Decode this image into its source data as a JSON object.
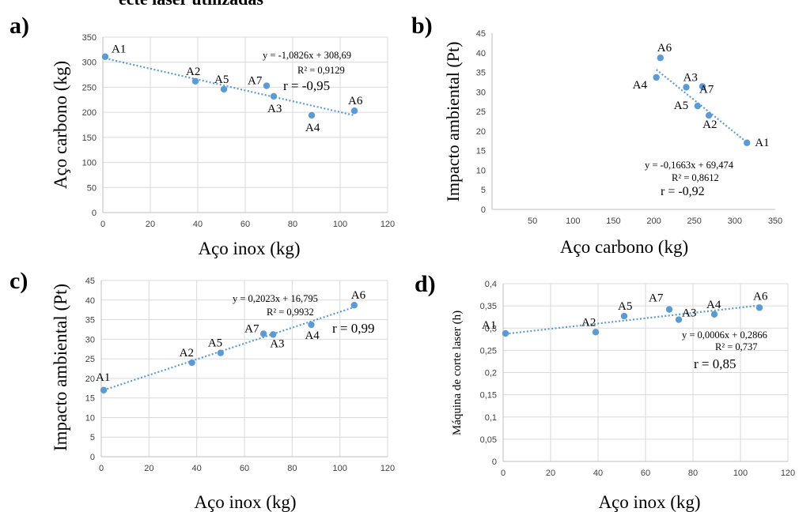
{
  "top_text": "ecte laser utilizadas",
  "colors": {
    "point": "#5b9bd5",
    "grid": "#d9d9d9",
    "axis": "#bfbfbf",
    "trend": "#5b9bd5"
  },
  "chart_data": [
    {
      "type": "scatter",
      "panel": "a)",
      "xlabel": "Aço inox (kg)",
      "ylabel": "Aço carbono (kg)",
      "xlim": [
        0,
        120
      ],
      "ylim": [
        0,
        350
      ],
      "xticks": [
        0,
        20,
        40,
        60,
        80,
        100,
        120
      ],
      "yticks": [
        0,
        50,
        100,
        150,
        200,
        250,
        300,
        350
      ],
      "grid": true,
      "points": [
        {
          "label": "A1",
          "x": 1,
          "y": 311
        },
        {
          "label": "A2",
          "x": 39,
          "y": 262
        },
        {
          "label": "A5",
          "x": 51,
          "y": 246
        },
        {
          "label": "A7",
          "x": 69,
          "y": 253
        },
        {
          "label": "A3",
          "x": 72,
          "y": 232
        },
        {
          "label": "A4",
          "x": 88,
          "y": 194
        },
        {
          "label": "A6",
          "x": 106,
          "y": 203
        }
      ],
      "trend": {
        "x": [
          1,
          106
        ],
        "y": [
          307.6,
          193.9
        ]
      },
      "equation": "y = -1,0826x + 308,69",
      "r2": "R² = 0,9129",
      "r": "r = -0,95"
    },
    {
      "type": "scatter",
      "panel": "b)",
      "xlabel": "Aço carbono (kg)",
      "ylabel": "Impacto ambiental (Pt)",
      "xlim": [
        0,
        350
      ],
      "ylim": [
        0,
        45
      ],
      "xticks": [
        50,
        100,
        150,
        200,
        250,
        300,
        350
      ],
      "yticks": [
        0,
        5,
        10,
        15,
        20,
        25,
        30,
        35,
        40,
        45
      ],
      "grid": false,
      "points": [
        {
          "label": "A6",
          "x": 208,
          "y": 38.7
        },
        {
          "label": "A4",
          "x": 203,
          "y": 33.7
        },
        {
          "label": "A3",
          "x": 240,
          "y": 31.2
        },
        {
          "label": "A7",
          "x": 260,
          "y": 31.4
        },
        {
          "label": "A5",
          "x": 254,
          "y": 26.4
        },
        {
          "label": "A2",
          "x": 268,
          "y": 24.0
        },
        {
          "label": "A1",
          "x": 315,
          "y": 17.0
        }
      ],
      "trend": {
        "x": [
          203,
          315
        ],
        "y": [
          35.7,
          17.1
        ]
      },
      "equation": "y = -0,1663x + 69,474",
      "r2": "R² = 0,8612",
      "r": "r = -0,92"
    },
    {
      "type": "scatter",
      "panel": "c)",
      "xlabel": "Aço inox (kg)",
      "ylabel": "Impacto ambiental (Pt)",
      "xlim": [
        0,
        120
      ],
      "ylim": [
        0,
        45
      ],
      "xticks": [
        0,
        20,
        40,
        60,
        80,
        100,
        120
      ],
      "yticks": [
        0,
        5,
        10,
        15,
        20,
        25,
        30,
        35,
        40,
        45
      ],
      "grid": true,
      "points": [
        {
          "label": "A1",
          "x": 1,
          "y": 17.0
        },
        {
          "label": "A2",
          "x": 38,
          "y": 24.0
        },
        {
          "label": "A5",
          "x": 50,
          "y": 26.5
        },
        {
          "label": "A7",
          "x": 68,
          "y": 31.4
        },
        {
          "label": "A3",
          "x": 72,
          "y": 31.2
        },
        {
          "label": "A4",
          "x": 88,
          "y": 33.7
        },
        {
          "label": "A6",
          "x": 106,
          "y": 38.7
        }
      ],
      "trend": {
        "x": [
          1,
          106
        ],
        "y": [
          17.0,
          38.2
        ]
      },
      "equation": "y = 0,2023x + 16,795",
      "r2": "R² = 0,9932",
      "r": "r = 0,99"
    },
    {
      "type": "scatter",
      "panel": "d)",
      "xlabel": "Aço inox (kg)",
      "ylabel": "Máquina de corte laser (h)",
      "xlim": [
        0,
        120
      ],
      "ylim": [
        0,
        0.4
      ],
      "xticks": [
        0,
        20,
        40,
        60,
        80,
        100,
        120
      ],
      "yticks": [
        0,
        0.05,
        0.1,
        0.15,
        0.2,
        0.25,
        0.3,
        0.35,
        0.4
      ],
      "yticklabels": [
        "0",
        "0,05",
        "0,1",
        "0,15",
        "0,2",
        "0,25",
        "0,3",
        "0,35",
        "0,4"
      ],
      "grid": true,
      "points": [
        {
          "label": "A1",
          "x": 1,
          "y": 0.288
        },
        {
          "label": "A2",
          "x": 39,
          "y": 0.291
        },
        {
          "label": "A5",
          "x": 51,
          "y": 0.327
        },
        {
          "label": "A7",
          "x": 70,
          "y": 0.342
        },
        {
          "label": "A3",
          "x": 74,
          "y": 0.319
        },
        {
          "label": "A4",
          "x": 89,
          "y": 0.331
        },
        {
          "label": "A6",
          "x": 108,
          "y": 0.346
        }
      ],
      "trend": {
        "x": [
          1,
          108
        ],
        "y": [
          0.287,
          0.351
        ]
      },
      "equation": "y = 0,0006x + 0,2866",
      "r2": "R² = 0,737",
      "r": "r = 0,85"
    }
  ]
}
